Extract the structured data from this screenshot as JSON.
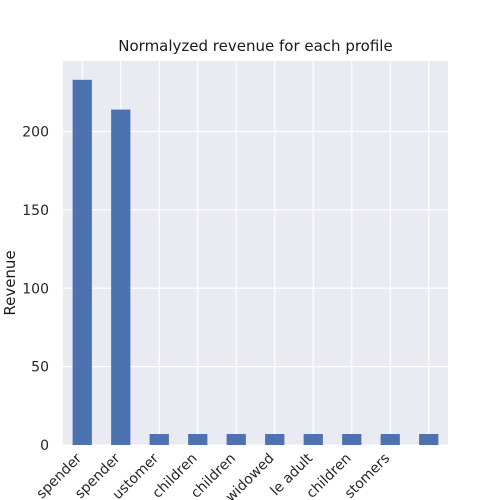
{
  "chart_data": {
    "type": "bar",
    "title": "Normalyzed revenue for each profile",
    "xlabel": "",
    "ylabel": "Revenue",
    "categories": [
      "spender",
      "spender",
      "ustomer",
      "children",
      "children",
      "widowed",
      "le adult",
      "children",
      "stomers",
      ""
    ],
    "values": [
      233,
      214,
      7,
      7,
      7,
      7,
      7,
      7,
      7,
      7
    ],
    "ylim": [
      0,
      245
    ],
    "yticks": [
      0,
      50,
      100,
      150,
      200
    ],
    "grid": true,
    "legend": "none",
    "colors": {
      "bar": "#4c72b0",
      "background": "#eaeaf2",
      "grid": "#ffffff"
    }
  }
}
